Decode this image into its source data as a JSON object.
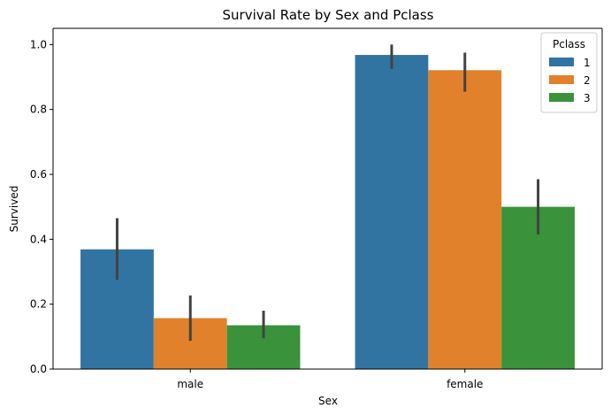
{
  "chart_data": {
    "type": "bar",
    "title": "Survival Rate by Sex and Pclass",
    "xlabel": "Sex",
    "ylabel": "Survived",
    "categories": [
      "male",
      "female"
    ],
    "ylim": [
      0,
      1.05
    ],
    "yticks": [
      "0.0",
      "0.2",
      "0.4",
      "0.6",
      "0.8",
      "1.0"
    ],
    "grid": false,
    "legend": {
      "title": "Pclass",
      "placement": "top-right"
    },
    "series": [
      {
        "name": "1",
        "color": "#3274a1",
        "values": [
          0.369,
          0.968
        ],
        "ci": [
          [
            0.275,
            0.465
          ],
          [
            0.925,
            1.0
          ]
        ]
      },
      {
        "name": "2",
        "color": "#e1812c",
        "values": [
          0.157,
          0.921
        ],
        "ci": [
          [
            0.087,
            0.227
          ],
          [
            0.855,
            0.975
          ]
        ]
      },
      {
        "name": "3",
        "color": "#3a923a",
        "values": [
          0.135,
          0.5
        ],
        "ci": [
          [
            0.095,
            0.18
          ],
          [
            0.415,
            0.585
          ]
        ]
      }
    ],
    "errorbar_color": "#424242"
  }
}
